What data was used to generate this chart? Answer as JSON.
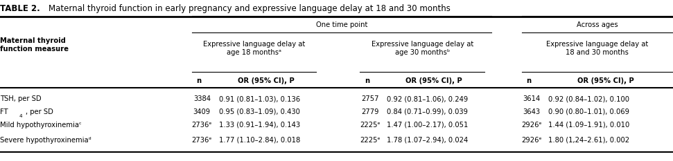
{
  "title_bold": "TABLE 2.",
  "title_text": "  Maternal thyroid function in early pregnancy and expressive language delay at 18 and 30 months",
  "bg_color": "#ffffff",
  "header_group1": "One time point",
  "header_group2": "Across ages",
  "col_header_1": "Expressive language delay at\nage 18 monthsᵃ",
  "col_header_2": "Expressive language delay at\nage 30 monthsᵇ",
  "col_header_3": "Expressive language delay at\n18 and 30 months",
  "row_header": "Maternal thyroid\nfunction measure",
  "sub_col_n": "n",
  "sub_col_or": "OR (95% CI), Ρ",
  "rows": [
    {
      "label": "TSH, per SD",
      "label_format": "normal",
      "n1": "3384",
      "or1": "0.91 (0.81–1.03), 0.136",
      "n2": "2757",
      "or2": "0.92 (0.81–1.06), 0.249",
      "n3": "3614",
      "or3": "0.92 (0.84–1.02), 0.100"
    },
    {
      "label": "FT₄, per SD",
      "label_format": "ft4",
      "n1": "3409",
      "or1": "0.95 (0.83–1.09), 0.430",
      "n2": "2779",
      "or2": "0.84 (0.71–0.99), 0.039",
      "n3": "3643",
      "or3": "0.90 (0.80–1.01), 0.069"
    },
    {
      "label": "Mild hypothyroxinemiaᶜ",
      "label_format": "normal",
      "n1": "2736ᵉ",
      "or1": "1.33 (0.91–1.94), 0.143",
      "n2": "2225ᵉ",
      "or2": "1.47 (1.00–2.17), 0.051",
      "n3": "2926ᵉ",
      "or3": "1.44 (1.09–1.91), 0.010"
    },
    {
      "label": "Severe hypothyroxinemiaᵈ",
      "label_format": "normal",
      "n1": "2736ᵉ",
      "or1": "1.77 (1.10–2.84), 0.018",
      "n2": "2225ᵉ",
      "or2": "1.78 (1.07–2.94), 0.024",
      "n3": "2926ᵉ",
      "or3": "1.80 (1,24–2.61), 0.002"
    }
  ]
}
